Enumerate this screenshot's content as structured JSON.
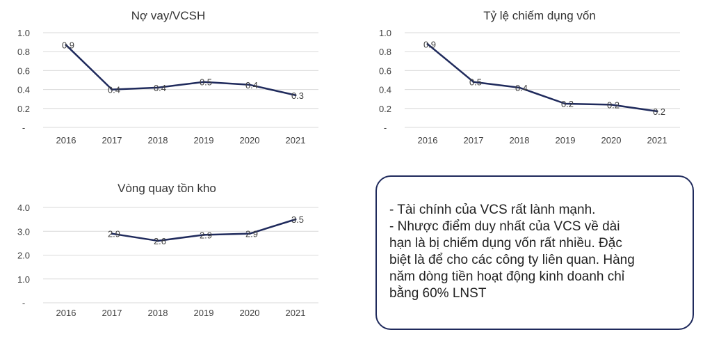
{
  "colors": {
    "line": "#1f2a5c",
    "grid": "#d9d9d9",
    "text": "#404040",
    "box_border": "#1f2a5c"
  },
  "chart_data": [
    {
      "type": "line",
      "title": "Nợ vay/VCSH",
      "categories": [
        "2016",
        "2017",
        "2018",
        "2019",
        "2020",
        "2021"
      ],
      "values": [
        0.87,
        0.4,
        0.42,
        0.48,
        0.45,
        0.34
      ],
      "labels": [
        "0.9",
        "0.4",
        "0.4",
        "0.5",
        "0.4",
        "0.3"
      ],
      "ylim": [
        0,
        1.0
      ],
      "yticks": [
        0,
        0.2,
        0.4,
        0.6,
        0.8,
        1.0
      ],
      "ytick_labels": [
        "-",
        "0.2",
        "0.4",
        "0.6",
        "0.8",
        "1.0"
      ]
    },
    {
      "type": "line",
      "title": "Tỷ lệ chiếm dụng vốn",
      "categories": [
        "2016",
        "2017",
        "2018",
        "2019",
        "2020",
        "2021"
      ],
      "values": [
        0.88,
        0.48,
        0.42,
        0.25,
        0.24,
        0.17
      ],
      "labels": [
        "0.9",
        "0.5",
        "0.4",
        "0.2",
        "0.2",
        "0.2"
      ],
      "ylim": [
        0,
        1.0
      ],
      "yticks": [
        0,
        0.2,
        0.4,
        0.6,
        0.8,
        1.0
      ],
      "ytick_labels": [
        "-",
        "0.2",
        "0.4",
        "0.6",
        "0.8",
        "1.0"
      ]
    },
    {
      "type": "line",
      "title": "Vòng quay tồn kho",
      "categories": [
        "2016",
        "2017",
        "2018",
        "2019",
        "2020",
        "2021"
      ],
      "values": [
        null,
        2.9,
        2.6,
        2.85,
        2.9,
        3.5
      ],
      "labels": [
        "",
        "2.9",
        "2.6",
        "2.9",
        "2.9",
        "3.5"
      ],
      "ylim": [
        0,
        4.0
      ],
      "yticks": [
        0,
        1.0,
        2.0,
        3.0,
        4.0
      ],
      "ytick_labels": [
        "-",
        "1.0",
        "2.0",
        "3.0",
        "4.0"
      ]
    }
  ],
  "note": {
    "lines": [
      "- Tài chính của VCS rất lành mạnh.",
      "- Nhược điểm duy nhất của VCS về dài",
      "hạn là bị chiếm dụng vốn rất nhiều. Đặc",
      "biệt là để cho các công ty liên quan. Hàng",
      "năm dòng tiền hoạt động kinh doanh chỉ",
      "bằng 60% LNST"
    ]
  }
}
